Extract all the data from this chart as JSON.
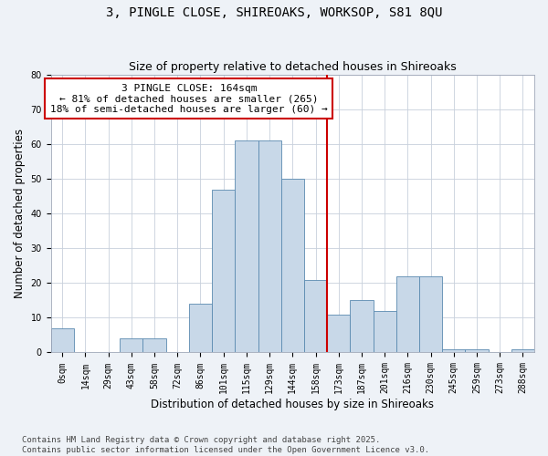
{
  "title": "3, PINGLE CLOSE, SHIREOAKS, WORKSOP, S81 8QU",
  "subtitle": "Size of property relative to detached houses in Shireoaks",
  "xlabel": "Distribution of detached houses by size in Shireoaks",
  "ylabel": "Number of detached properties",
  "footnote": "Contains HM Land Registry data © Crown copyright and database right 2025.\nContains public sector information licensed under the Open Government Licence v3.0.",
  "bin_labels": [
    "0sqm",
    "14sqm",
    "29sqm",
    "43sqm",
    "58sqm",
    "72sqm",
    "86sqm",
    "101sqm",
    "115sqm",
    "129sqm",
    "144sqm",
    "158sqm",
    "173sqm",
    "187sqm",
    "201sqm",
    "216sqm",
    "230sqm",
    "245sqm",
    "259sqm",
    "273sqm",
    "288sqm"
  ],
  "bar_values": [
    7,
    0,
    0,
    4,
    4,
    0,
    14,
    47,
    61,
    61,
    50,
    21,
    11,
    15,
    12,
    22,
    22,
    1,
    1,
    0,
    1
  ],
  "bar_color": "#c8d8e8",
  "bar_edge_color": "#5a8ab0",
  "vline_x": 11.5,
  "vline_color": "#cc0000",
  "annotation_text": "3 PINGLE CLOSE: 164sqm\n← 81% of detached houses are smaller (265)\n18% of semi-detached houses are larger (60) →",
  "annotation_box_color": "#cc0000",
  "ylim": [
    0,
    80
  ],
  "yticks": [
    0,
    10,
    20,
    30,
    40,
    50,
    60,
    70,
    80
  ],
  "bg_color": "#eef2f7",
  "plot_bg_color": "#ffffff",
  "grid_color": "#c8d0dc",
  "title_fontsize": 10,
  "subtitle_fontsize": 9,
  "axis_label_fontsize": 8.5,
  "tick_fontsize": 7,
  "annotation_fontsize": 8,
  "footnote_fontsize": 6.5
}
